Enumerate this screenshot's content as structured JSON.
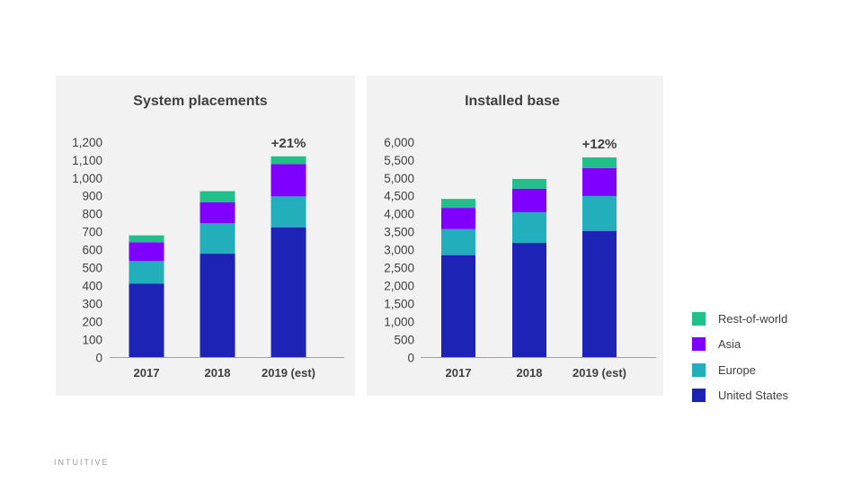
{
  "chart_data": [
    {
      "type": "bar",
      "stacked": true,
      "title": "System placements",
      "categories": [
        "2017",
        "2018",
        "2019 (est)"
      ],
      "ylim": [
        0,
        1200
      ],
      "yticks": [
        0,
        100,
        200,
        300,
        400,
        500,
        600,
        700,
        800,
        900,
        1000,
        1100,
        1200
      ],
      "ytick_labels": [
        "0",
        "100",
        "200",
        "300",
        "400",
        "500",
        "600",
        "700",
        "800",
        "900",
        "1,000",
        "1,100",
        "1,200"
      ],
      "annotation": "+21%",
      "series": [
        {
          "name": "United States",
          "values": [
            412,
            578,
            725
          ]
        },
        {
          "name": "Europe",
          "values": [
            125,
            170,
            172
          ]
        },
        {
          "name": "Asia",
          "values": [
            105,
            117,
            180
          ]
        },
        {
          "name": "Rest-of-world",
          "values": [
            38,
            61,
            43
          ]
        }
      ]
    },
    {
      "type": "bar",
      "stacked": true,
      "title": "Installed base",
      "categories": [
        "2017",
        "2018",
        "2019 (est)"
      ],
      "ylim": [
        0,
        6000
      ],
      "yticks": [
        0,
        500,
        1000,
        1500,
        2000,
        2500,
        3000,
        3500,
        4000,
        4500,
        5000,
        5500,
        6000
      ],
      "ytick_labels": [
        "0",
        "500",
        "1,000",
        "1,500",
        "2,000",
        "2,500",
        "3,000",
        "3,500",
        "4,000",
        "4,500",
        "5,000",
        "5,500",
        "6,000"
      ],
      "annotation": "+12%",
      "series": [
        {
          "name": "United States",
          "values": [
            2850,
            3190,
            3525
          ]
        },
        {
          "name": "Europe",
          "values": [
            725,
            855,
            970
          ]
        },
        {
          "name": "Asia",
          "values": [
            590,
            655,
            775
          ]
        },
        {
          "name": "Rest-of-world",
          "values": [
            250,
            270,
            300
          ]
        }
      ]
    }
  ],
  "colors": {
    "United States": "#1c23b5",
    "Europe": "#22aebb",
    "Asia": "#7f00ff",
    "Rest-of-world": "#21c08b"
  },
  "legend": [
    "Rest-of-world",
    "Asia",
    "Europe",
    "United States"
  ],
  "logo": "INTUITIVE"
}
